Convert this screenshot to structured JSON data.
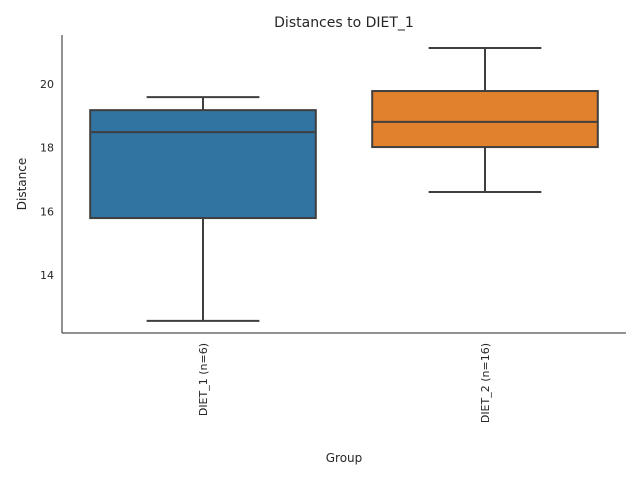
{
  "chart_data": {
    "type": "box",
    "title": "Distances to DIET_1",
    "xlabel": "Group",
    "ylabel": "Distance",
    "ylim": [
      12.18,
      21.54
    ],
    "yticks": [
      14,
      16,
      18,
      20
    ],
    "grid": false,
    "categories": [
      "DIET_1 (n=6)",
      "DIET_2 (n=16)"
    ],
    "boxes": [
      {
        "name": "DIET_1 (n=6)",
        "whisker_low": 12.56,
        "q1": 15.79,
        "median": 18.49,
        "q3": 19.18,
        "whisker_high": 19.59,
        "color": "#3274a1"
      },
      {
        "name": "DIET_2 (n=16)",
        "whisker_low": 16.61,
        "q1": 18.02,
        "median": 18.81,
        "q3": 19.78,
        "whisker_high": 21.13,
        "color": "#e1812c"
      }
    ]
  }
}
